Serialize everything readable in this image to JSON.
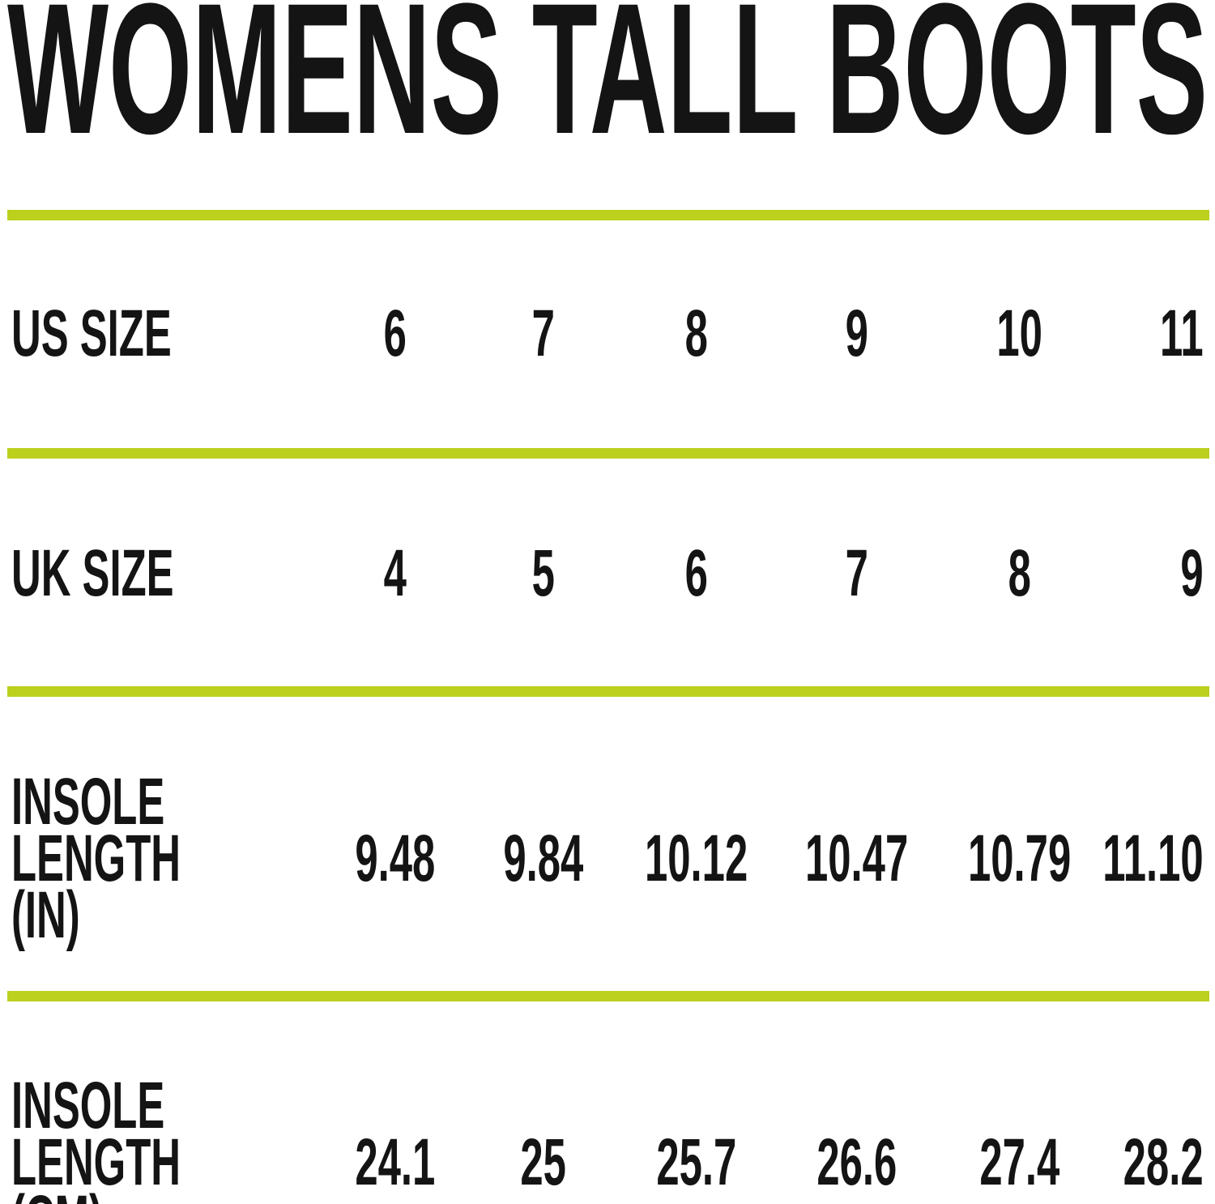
{
  "title": "WOMENS TALL BOOTS",
  "colors": {
    "accent": "#bcd01e",
    "text": "#141414",
    "background": "#ffffff"
  },
  "table": {
    "rows": [
      {
        "label": "US SIZE",
        "values": [
          "6",
          "7",
          "8",
          "9",
          "10",
          "11"
        ]
      },
      {
        "label": "UK SIZE",
        "values": [
          "4",
          "5",
          "6",
          "7",
          "8",
          "9"
        ]
      },
      {
        "label": "INSOLE\nLENGTH (IN)",
        "values": [
          "9.48",
          "9.84",
          "10.12",
          "10.47",
          "10.79",
          "11.10"
        ]
      },
      {
        "label": "INSOLE\nLENGTH (CM)",
        "values": [
          "24.1",
          "25",
          "25.7",
          "26.6",
          "27.4",
          "28.2"
        ]
      }
    ]
  },
  "chart_data": {
    "type": "table",
    "title": "WOMENS TALL BOOTS",
    "rows": [
      {
        "label": "US SIZE",
        "values": [
          6,
          7,
          8,
          9,
          10,
          11
        ]
      },
      {
        "label": "UK SIZE",
        "values": [
          4,
          5,
          6,
          7,
          8,
          9
        ]
      },
      {
        "label": "INSOLE LENGTH (IN)",
        "values": [
          9.48,
          9.84,
          10.12,
          10.47,
          10.79,
          11.1
        ]
      },
      {
        "label": "INSOLE LENGTH (CM)",
        "values": [
          24.1,
          25,
          25.7,
          26.6,
          27.4,
          28.2
        ]
      }
    ],
    "layout_hints": {
      "row_labels_left": true,
      "divider_color": "#bcd01e",
      "dividers_between_rows": true
    }
  }
}
